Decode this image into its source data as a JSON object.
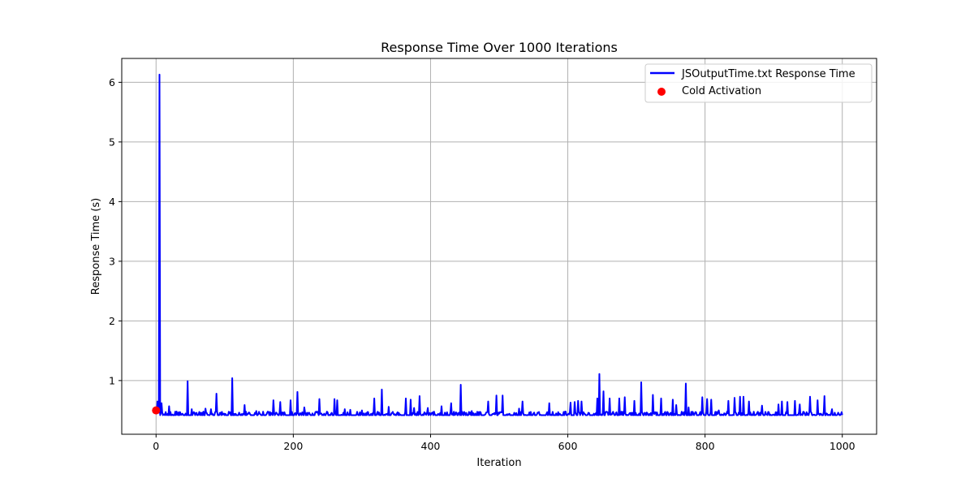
{
  "chart_data": {
    "type": "line",
    "title": "Response Time Over 1000 Iterations",
    "xlabel": "Iteration",
    "ylabel": "Response Time (s)",
    "xlim": [
      -50,
      1050
    ],
    "ylim": [
      0.1,
      6.4
    ],
    "xticks": [
      0,
      200,
      400,
      600,
      800,
      1000
    ],
    "yticks": [
      1,
      2,
      3,
      4,
      5,
      6
    ],
    "grid": true,
    "legend_position": "top-right",
    "series": [
      {
        "name": "JSOutputTime.txt Response Time",
        "color": "#0000ff",
        "baseline": 0.42,
        "x_range": [
          1,
          1000
        ],
        "spikes": [
          {
            "x": 2,
            "y": 0.65
          },
          {
            "x": 5,
            "y": 6.13
          },
          {
            "x": 8,
            "y": 0.62
          },
          {
            "x": 19,
            "y": 0.57
          },
          {
            "x": 30,
            "y": 0.48
          },
          {
            "x": 46,
            "y": 0.99
          },
          {
            "x": 52,
            "y": 0.52
          },
          {
            "x": 72,
            "y": 0.53
          },
          {
            "x": 80,
            "y": 0.52
          },
          {
            "x": 88,
            "y": 0.78
          },
          {
            "x": 111,
            "y": 1.04
          },
          {
            "x": 129,
            "y": 0.59
          },
          {
            "x": 146,
            "y": 0.49
          },
          {
            "x": 163,
            "y": 0.48
          },
          {
            "x": 171,
            "y": 0.67
          },
          {
            "x": 181,
            "y": 0.64
          },
          {
            "x": 196,
            "y": 0.67
          },
          {
            "x": 206,
            "y": 0.81
          },
          {
            "x": 216,
            "y": 0.55
          },
          {
            "x": 238,
            "y": 0.69
          },
          {
            "x": 260,
            "y": 0.69
          },
          {
            "x": 264,
            "y": 0.67
          },
          {
            "x": 275,
            "y": 0.52
          },
          {
            "x": 283,
            "y": 0.51
          },
          {
            "x": 300,
            "y": 0.5
          },
          {
            "x": 318,
            "y": 0.7
          },
          {
            "x": 329,
            "y": 0.85
          },
          {
            "x": 339,
            "y": 0.56
          },
          {
            "x": 364,
            "y": 0.7
          },
          {
            "x": 371,
            "y": 0.68
          },
          {
            "x": 376,
            "y": 0.54
          },
          {
            "x": 384,
            "y": 0.74
          },
          {
            "x": 396,
            "y": 0.54
          },
          {
            "x": 416,
            "y": 0.57
          },
          {
            "x": 430,
            "y": 0.62
          },
          {
            "x": 444,
            "y": 0.93
          },
          {
            "x": 460,
            "y": 0.49
          },
          {
            "x": 484,
            "y": 0.65
          },
          {
            "x": 496,
            "y": 0.75
          },
          {
            "x": 505,
            "y": 0.75
          },
          {
            "x": 529,
            "y": 0.53
          },
          {
            "x": 534,
            "y": 0.65
          },
          {
            "x": 573,
            "y": 0.62
          },
          {
            "x": 597,
            "y": 0.48
          },
          {
            "x": 604,
            "y": 0.63
          },
          {
            "x": 610,
            "y": 0.64
          },
          {
            "x": 615,
            "y": 0.66
          },
          {
            "x": 620,
            "y": 0.65
          },
          {
            "x": 643,
            "y": 0.7
          },
          {
            "x": 646,
            "y": 1.11
          },
          {
            "x": 652,
            "y": 0.82
          },
          {
            "x": 661,
            "y": 0.7
          },
          {
            "x": 675,
            "y": 0.7
          },
          {
            "x": 683,
            "y": 0.72
          },
          {
            "x": 697,
            "y": 0.66
          },
          {
            "x": 707,
            "y": 0.97
          },
          {
            "x": 724,
            "y": 0.76
          },
          {
            "x": 736,
            "y": 0.7
          },
          {
            "x": 753,
            "y": 0.68
          },
          {
            "x": 758,
            "y": 0.59
          },
          {
            "x": 772,
            "y": 0.95
          },
          {
            "x": 776,
            "y": 0.55
          },
          {
            "x": 796,
            "y": 0.72
          },
          {
            "x": 803,
            "y": 0.69
          },
          {
            "x": 809,
            "y": 0.68
          },
          {
            "x": 820,
            "y": 0.5
          },
          {
            "x": 834,
            "y": 0.66
          },
          {
            "x": 843,
            "y": 0.71
          },
          {
            "x": 851,
            "y": 0.73
          },
          {
            "x": 856,
            "y": 0.73
          },
          {
            "x": 864,
            "y": 0.65
          },
          {
            "x": 883,
            "y": 0.58
          },
          {
            "x": 907,
            "y": 0.6
          },
          {
            "x": 912,
            "y": 0.65
          },
          {
            "x": 920,
            "y": 0.64
          },
          {
            "x": 931,
            "y": 0.66
          },
          {
            "x": 938,
            "y": 0.6
          },
          {
            "x": 953,
            "y": 0.73
          },
          {
            "x": 964,
            "y": 0.67
          },
          {
            "x": 974,
            "y": 0.74
          },
          {
            "x": 985,
            "y": 0.52
          },
          {
            "x": 999,
            "y": 0.47
          }
        ]
      }
    ],
    "cold_activation": {
      "name": "Cold Activation",
      "color": "#ff0000",
      "x": 0,
      "y": 0.5
    }
  }
}
